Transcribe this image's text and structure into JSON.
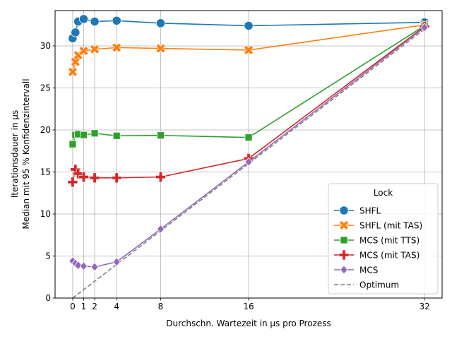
{
  "chart_data": {
    "type": "line",
    "title": "",
    "xlabel": "Durchschn. Wartezeit in µs pro Prozess",
    "ylabel_lines": [
      "Iterationsdauer in µs",
      "Median mit 95 % Konfidenzintervall"
    ],
    "xlim": [
      -1.6,
      33.6
    ],
    "ylim": [
      0,
      34.2
    ],
    "xticks": [
      0,
      1,
      2,
      4,
      8,
      16,
      32
    ],
    "yticks": [
      0,
      5,
      10,
      15,
      20,
      25,
      30
    ],
    "grid": true,
    "legend": {
      "title": "Lock",
      "placement": "lower-right"
    },
    "series": [
      {
        "name": "SHFL",
        "color": "#1f77b4",
        "marker": "circle",
        "points": [
          [
            0,
            30.9
          ],
          [
            0.25,
            31.6
          ],
          [
            0.5,
            32.9
          ],
          [
            1,
            33.2
          ],
          [
            2,
            32.9
          ],
          [
            4,
            33.0
          ],
          [
            8,
            32.7
          ],
          [
            16,
            32.4
          ],
          [
            32,
            32.8
          ]
        ]
      },
      {
        "name": "SHFL (mit TAS)",
        "color": "#ff7f0e",
        "marker": "x",
        "points": [
          [
            0,
            26.9
          ],
          [
            0.25,
            28.1
          ],
          [
            0.5,
            28.9
          ],
          [
            1,
            29.4
          ],
          [
            2,
            29.6
          ],
          [
            4,
            29.8
          ],
          [
            8,
            29.7
          ],
          [
            16,
            29.5
          ],
          [
            32,
            32.5
          ]
        ]
      },
      {
        "name": "MCS (mit TTS)",
        "color": "#2ca02c",
        "marker": "square",
        "points": [
          [
            0,
            18.3
          ],
          [
            0.25,
            19.4
          ],
          [
            0.5,
            19.5
          ],
          [
            1,
            19.4
          ],
          [
            2,
            19.6
          ],
          [
            4,
            19.3
          ],
          [
            8,
            19.35
          ],
          [
            16,
            19.1
          ],
          [
            32,
            32.4
          ]
        ]
      },
      {
        "name": "MCS (mit TAS)",
        "color": "#d62728",
        "marker": "plus",
        "points": [
          [
            0,
            13.8
          ],
          [
            0.25,
            15.3
          ],
          [
            0.5,
            14.8
          ],
          [
            1,
            14.4
          ],
          [
            2,
            14.3
          ],
          [
            4,
            14.3
          ],
          [
            8,
            14.4
          ],
          [
            16,
            16.6
          ],
          [
            32,
            32.3
          ]
        ]
      },
      {
        "name": "MCS",
        "color": "#9467bd",
        "marker": "diamond",
        "points": [
          [
            0,
            4.4
          ],
          [
            0.25,
            4.1
          ],
          [
            0.5,
            3.9
          ],
          [
            1,
            3.8
          ],
          [
            2,
            3.7
          ],
          [
            4,
            4.3
          ],
          [
            8,
            8.2
          ],
          [
            16,
            16.2
          ],
          [
            32,
            32.2
          ]
        ]
      },
      {
        "name": "Optimum",
        "color": "#7f7f7f",
        "marker": "none",
        "dashed": true,
        "points": [
          [
            0,
            0
          ],
          [
            32,
            32
          ]
        ]
      }
    ]
  }
}
